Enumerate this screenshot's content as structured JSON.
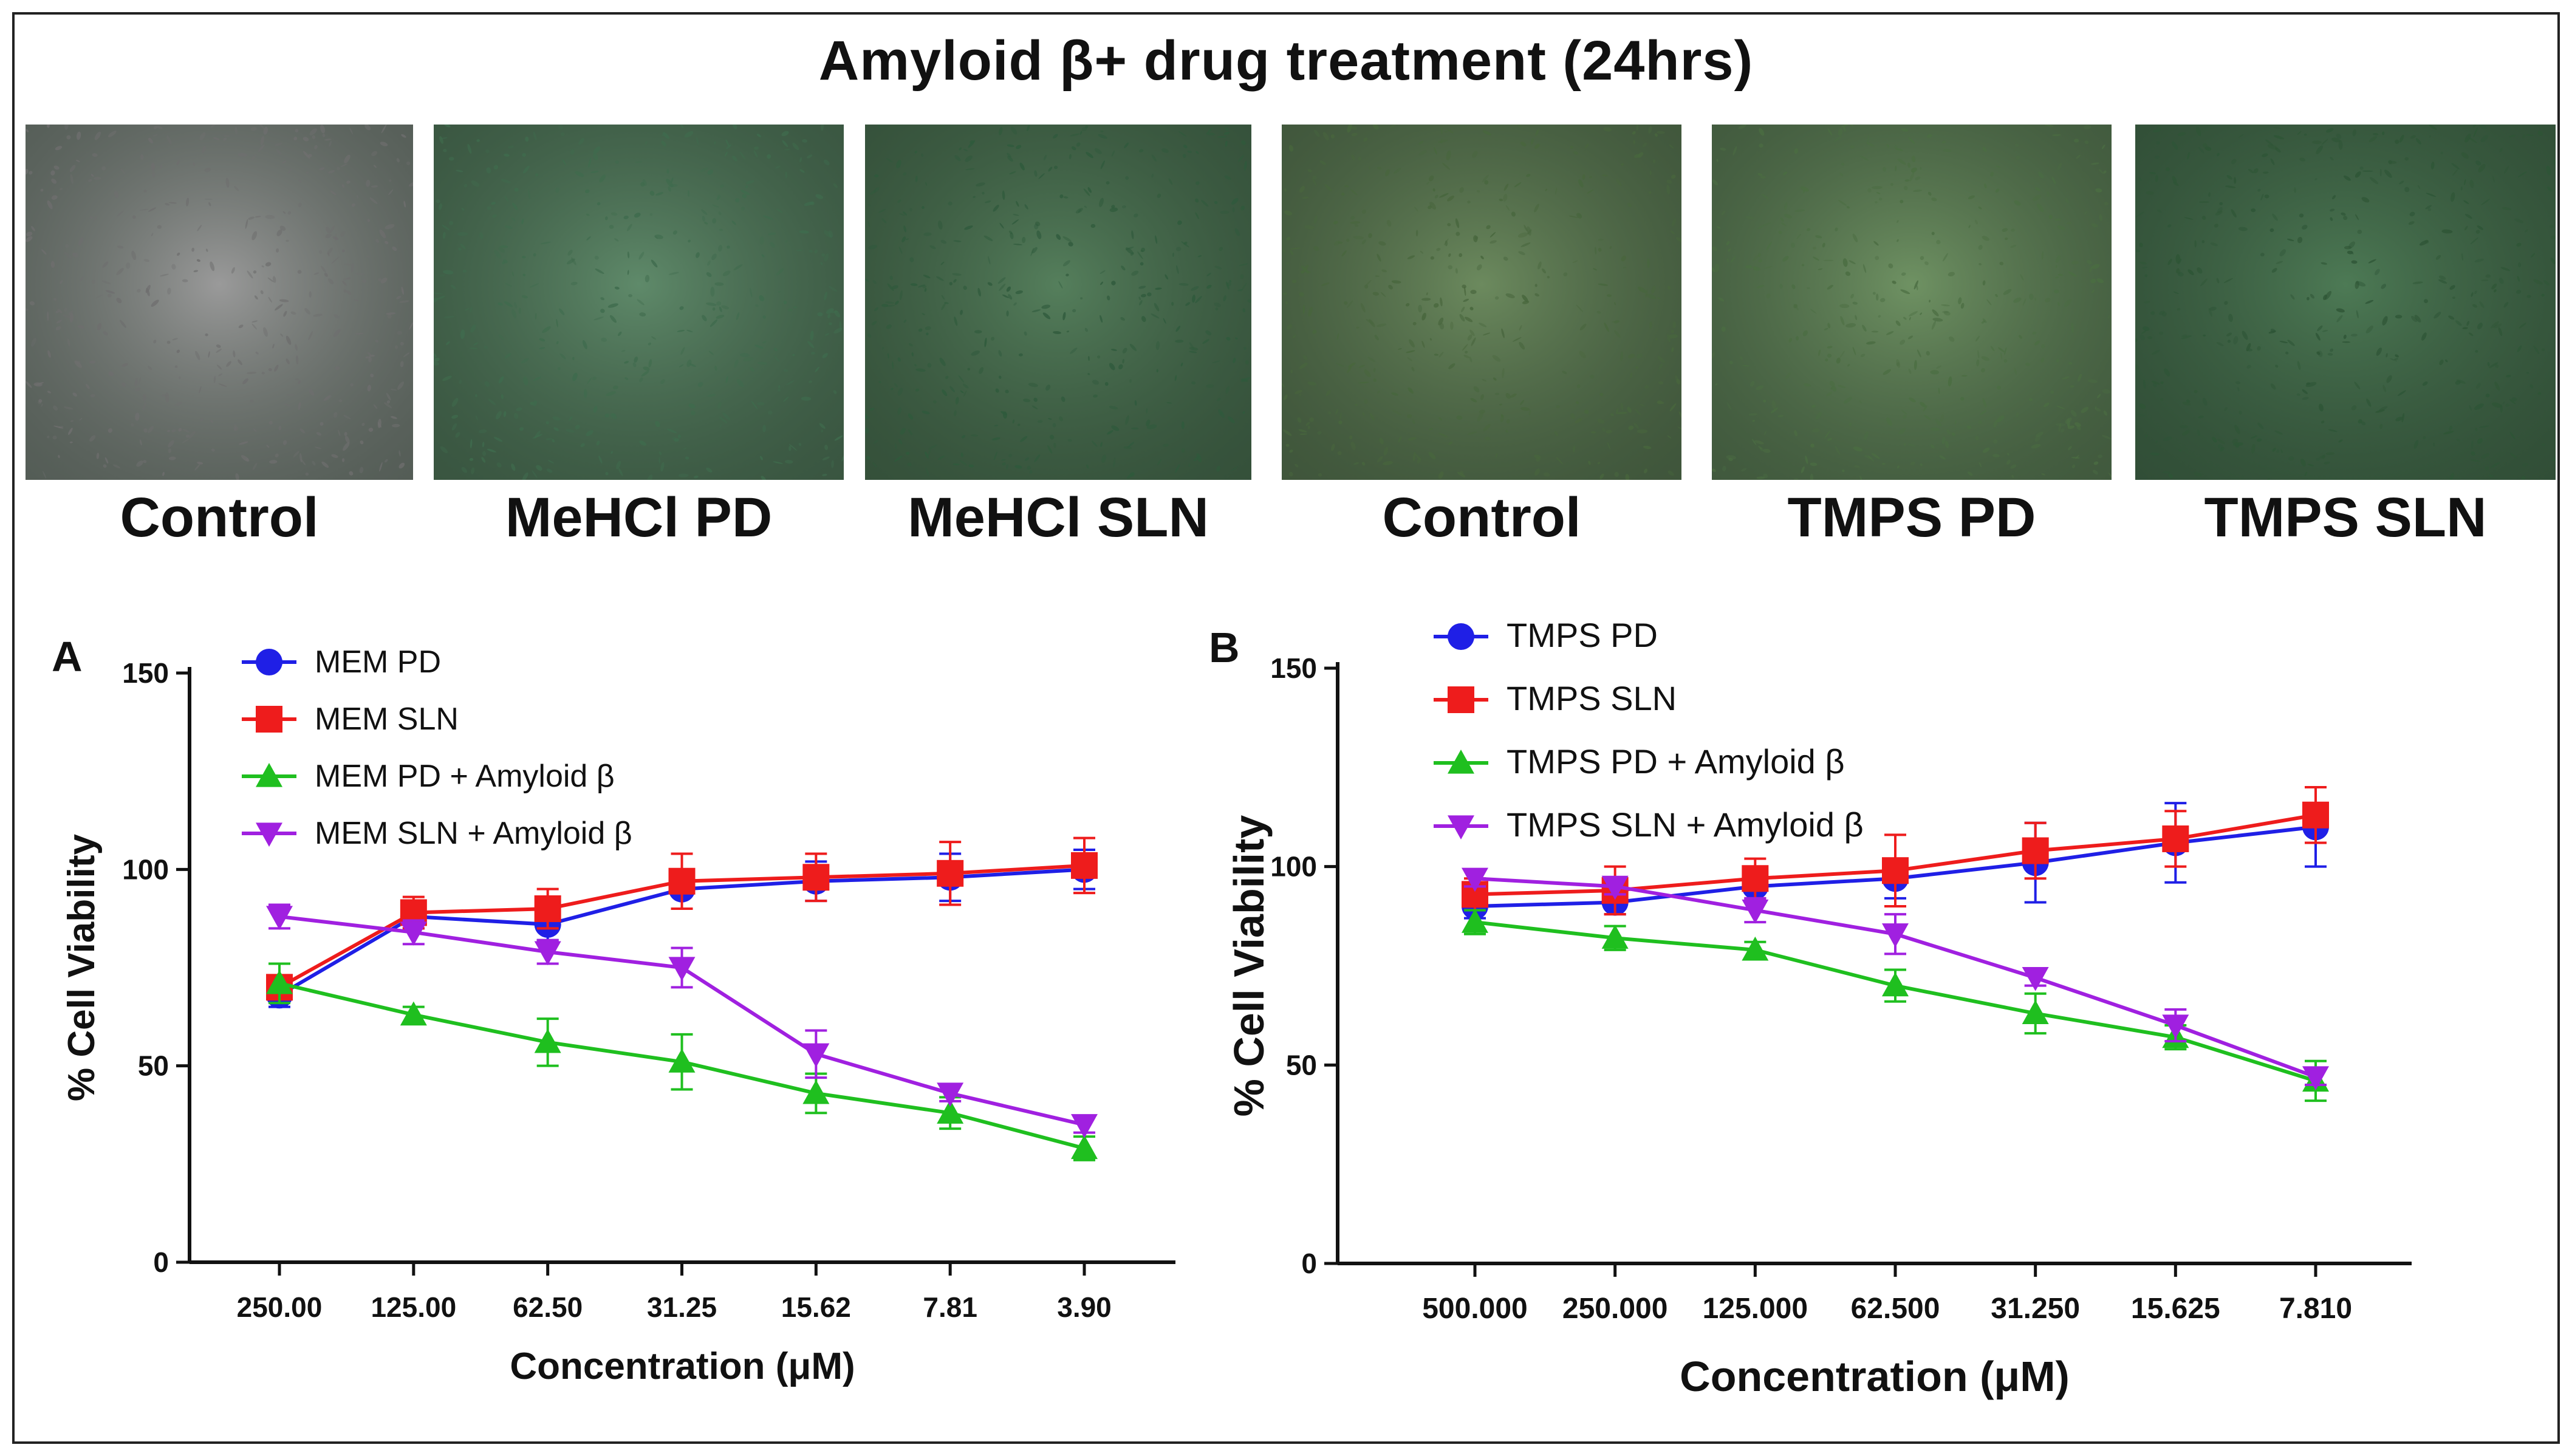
{
  "figure_title": "Amyloid β+ drug treatment (24hrs)",
  "micrographs": [
    {
      "label": "Control",
      "tint": "#9a9a9a",
      "cell": "#6e6e6e"
    },
    {
      "label": "MeHCl PD",
      "tint": "#5f8a6a",
      "cell": "#3f6b4d"
    },
    {
      "label": "MeHCl SLN",
      "tint": "#557f5c",
      "cell": "#2f5a3c"
    },
    {
      "label": "Control",
      "tint": "#6c8a5e",
      "cell": "#48663d"
    },
    {
      "label": "TMPS PD",
      "tint": "#6f9263",
      "cell": "#4b6d42"
    },
    {
      "label": "TMPS SLN",
      "tint": "#4d7a55",
      "cell": "#2e5536"
    }
  ],
  "chart_data": [
    {
      "panel": "A",
      "type": "line",
      "categories": [
        "250.00",
        "125.00",
        "62.50",
        "31.25",
        "15.62",
        "7.81",
        "3.90"
      ],
      "xlabel": "Concentration (μM)",
      "ylabel": "% Cell Viability",
      "ylim": [
        0,
        150
      ],
      "yticks": [
        "0",
        "50",
        "100",
        "150"
      ],
      "legend_position": "top-left",
      "series": [
        {
          "name": "MEM PD",
          "color": "#1f1fe6",
          "marker": "circle",
          "values": [
            68,
            88,
            86,
            95,
            97,
            98,
            100
          ],
          "errors": [
            3,
            3,
            4,
            5,
            5,
            6,
            5
          ]
        },
        {
          "name": "MEM SLN",
          "color": "#ee1c1c",
          "marker": "square",
          "values": [
            70,
            89,
            90,
            97,
            98,
            99,
            101
          ],
          "errors": [
            3,
            4,
            5,
            7,
            6,
            8,
            7
          ]
        },
        {
          "name": "MEM PD + Amyloid β",
          "color": "#1fbf1f",
          "marker": "triangle-up",
          "values": [
            71,
            63,
            56,
            51,
            43,
            38,
            29
          ],
          "errors": [
            5,
            2,
            6,
            7,
            5,
            4,
            3
          ]
        },
        {
          "name": "MEM SLN + Amyloid β",
          "color": "#a020e0",
          "marker": "triangle-down",
          "values": [
            88,
            84,
            79,
            75,
            53,
            43,
            35
          ],
          "errors": [
            3,
            3,
            3,
            5,
            6,
            2,
            2
          ]
        }
      ]
    },
    {
      "panel": "B",
      "type": "line",
      "categories": [
        "500.000",
        "250.000",
        "125.000",
        "62.500",
        "31.250",
        "15.625",
        "7.810"
      ],
      "xlabel": "Concentration (μM)",
      "ylabel": "% Cell Viability",
      "ylim": [
        0,
        150
      ],
      "yticks": [
        "0",
        "50",
        "100",
        "150"
      ],
      "legend_position": "top-left",
      "series": [
        {
          "name": "TMPS PD",
          "color": "#1f1fe6",
          "marker": "circle",
          "values": [
            90,
            91,
            95,
            97,
            101,
            106,
            110
          ],
          "errors": [
            3,
            3,
            4,
            5,
            10,
            10,
            10
          ]
        },
        {
          "name": "TMPS SLN",
          "color": "#ee1c1c",
          "marker": "square",
          "values": [
            93,
            94,
            97,
            99,
            104,
            107,
            113
          ],
          "errors": [
            4,
            6,
            5,
            9,
            7,
            7,
            7
          ]
        },
        {
          "name": "TMPS PD + Amyloid β",
          "color": "#1fbf1f",
          "marker": "triangle-up",
          "values": [
            86,
            82,
            79,
            70,
            63,
            57,
            46
          ],
          "errors": [
            3,
            3,
            2,
            4,
            5,
            3,
            5
          ]
        },
        {
          "name": "TMPS SLN + Amyloid β",
          "color": "#a020e0",
          "marker": "triangle-down",
          "values": [
            97,
            95,
            89,
            83,
            72,
            60,
            47
          ],
          "errors": [
            2,
            2,
            3,
            5,
            2,
            4,
            2
          ]
        }
      ]
    }
  ]
}
